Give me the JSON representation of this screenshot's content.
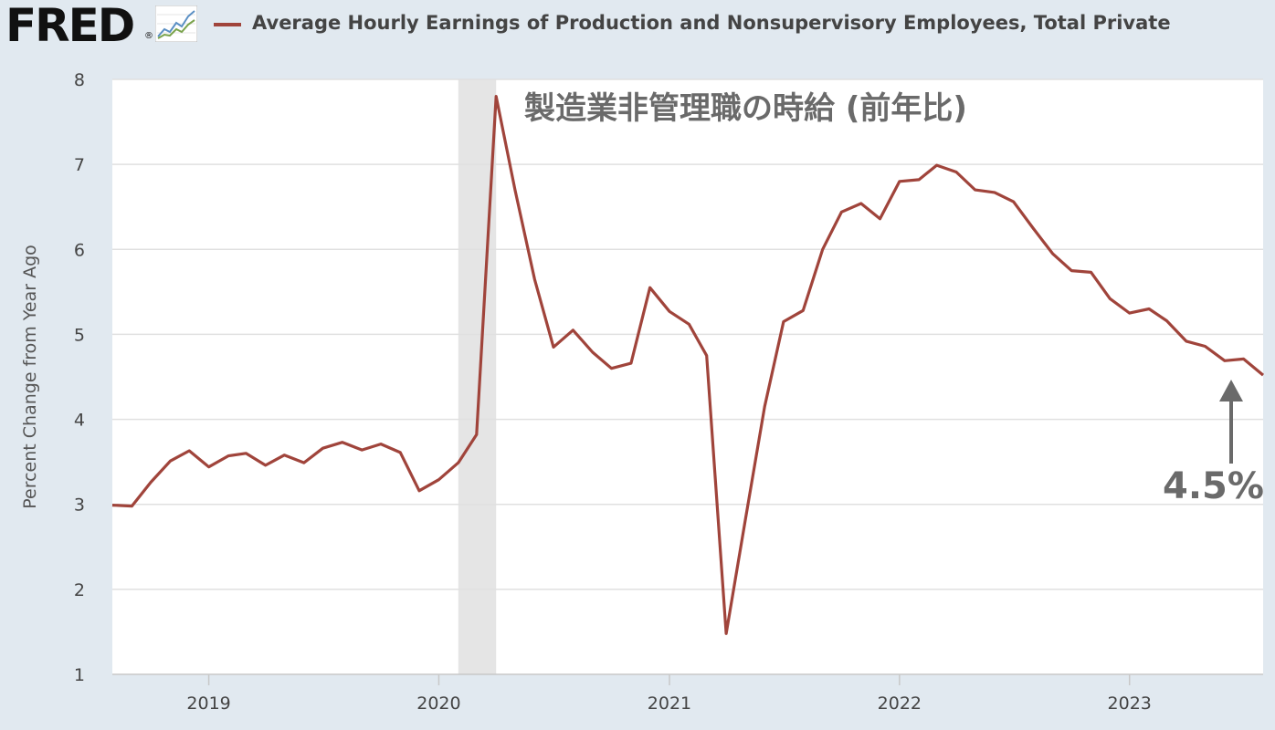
{
  "header": {
    "logo_text": "FRED",
    "logo_reg": "®",
    "series_title": "Average Hourly Earnings of Production and Nonsupervisory Employees, Total Private"
  },
  "colors": {
    "background": "#e1e9f0",
    "plot_bg": "#ffffff",
    "series_line": "#a0443b",
    "recession_band": "#e5e5e5",
    "annotation": "#6a6a6a"
  },
  "icons": {
    "logo_chart": "line-chart-icon",
    "arrow": "up-arrow-icon"
  },
  "annotations": {
    "title": "製造業非管理職の時給 (前年比)",
    "value": "4.5%"
  },
  "chart_data": {
    "type": "line",
    "ylabel": "Percent Change from Year Ago",
    "xlabel": "",
    "ylim": [
      1,
      8
    ],
    "xlim": [
      "2018-08-01",
      "2023-08-01"
    ],
    "yticks": [
      "1",
      "2",
      "3",
      "4",
      "5",
      "6",
      "7",
      "8"
    ],
    "xticks": [
      {
        "label": "2019",
        "date": "2019-01-01"
      },
      {
        "label": "2020",
        "date": "2020-01-01"
      },
      {
        "label": "2021",
        "date": "2021-01-01"
      },
      {
        "label": "2022",
        "date": "2022-01-01"
      },
      {
        "label": "2023",
        "date": "2023-01-01"
      }
    ],
    "grid": true,
    "recession": {
      "start": "2020-02-01",
      "end": "2020-04-01"
    },
    "series": [
      {
        "name": "Average Hourly Earnings of Production and Nonsupervisory Employees, Total Private",
        "x": [
          "2018-08",
          "2018-09",
          "2018-10",
          "2018-11",
          "2018-12",
          "2019-01",
          "2019-02",
          "2019-03",
          "2019-04",
          "2019-05",
          "2019-06",
          "2019-07",
          "2019-08",
          "2019-09",
          "2019-10",
          "2019-11",
          "2019-12",
          "2020-01",
          "2020-02",
          "2020-03",
          "2020-04",
          "2020-05",
          "2020-06",
          "2020-07",
          "2020-08",
          "2020-09",
          "2020-10",
          "2020-11",
          "2020-12",
          "2021-01",
          "2021-02",
          "2021-03",
          "2021-04",
          "2021-05",
          "2021-06",
          "2021-07",
          "2021-08",
          "2021-09",
          "2021-10",
          "2021-11",
          "2021-12",
          "2022-01",
          "2022-02",
          "2022-03",
          "2022-04",
          "2022-05",
          "2022-06",
          "2022-07",
          "2022-08",
          "2022-09",
          "2022-10",
          "2022-11",
          "2022-12",
          "2023-01",
          "2023-02",
          "2023-03",
          "2023-04",
          "2023-05",
          "2023-06",
          "2023-07",
          "2023-08"
        ],
        "values": [
          2.99,
          2.98,
          3.26,
          3.51,
          3.63,
          3.44,
          3.57,
          3.6,
          3.46,
          3.58,
          3.49,
          3.66,
          3.73,
          3.64,
          3.71,
          3.61,
          3.16,
          3.29,
          3.49,
          3.82,
          7.8,
          6.7,
          5.65,
          4.85,
          5.05,
          4.79,
          4.6,
          4.66,
          5.55,
          5.27,
          5.12,
          4.75,
          1.48,
          2.8,
          4.15,
          5.15,
          5.28,
          6.0,
          6.44,
          6.54,
          6.36,
          6.8,
          6.82,
          6.99,
          6.91,
          6.7,
          6.67,
          6.56,
          6.25,
          5.95,
          5.75,
          5.73,
          5.42,
          5.25,
          5.3,
          5.16,
          4.92,
          4.86,
          4.69,
          4.71,
          4.52
        ]
      }
    ]
  }
}
